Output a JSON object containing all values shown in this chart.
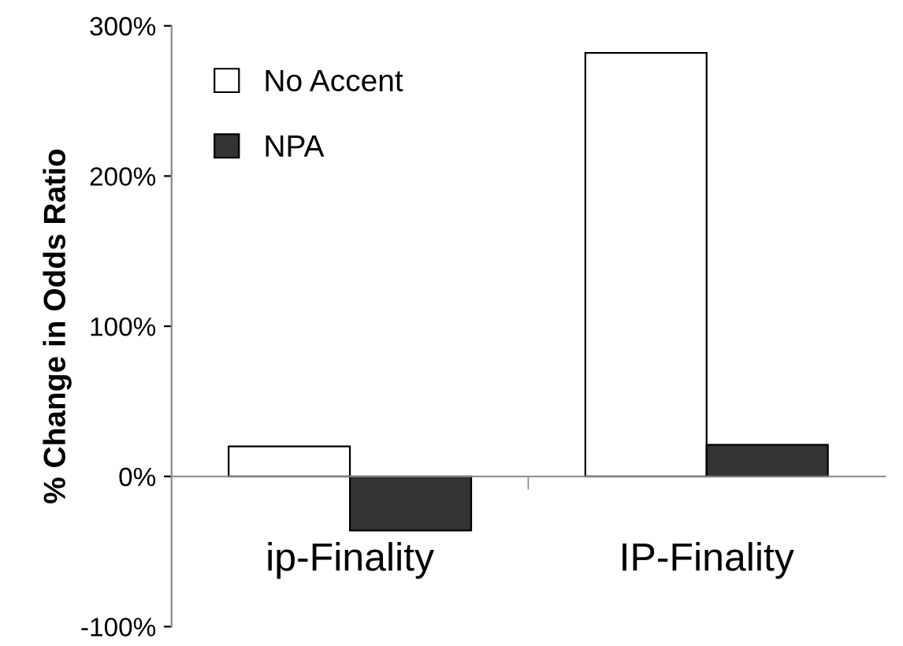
{
  "chart_data": {
    "type": "bar",
    "ylabel": "% Change in Odds Ratio",
    "categories": [
      "ip-Finality",
      "IP-Finality"
    ],
    "series": [
      {
        "name": "No Accent",
        "color": "#ffffff",
        "values": [
          20,
          282
        ]
      },
      {
        "name": "NPA",
        "color": "#333333",
        "values": [
          -36,
          21
        ]
      }
    ],
    "ylim": [
      -100,
      300
    ],
    "yticks": [
      {
        "value": -100,
        "label": "-100%"
      },
      {
        "value": 0,
        "label": "0%"
      },
      {
        "value": 100,
        "label": "100%"
      },
      {
        "value": 200,
        "label": "200%"
      },
      {
        "value": 300,
        "label": "300%"
      }
    ],
    "grid": false,
    "legend": "top left"
  }
}
